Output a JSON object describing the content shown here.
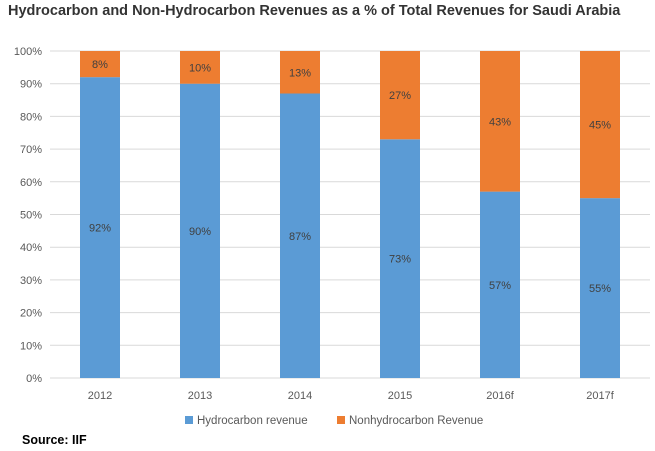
{
  "title": "Hydrocarbon and Non-Hydrocarbon Revenues as a % of Total Revenues for Saudi Arabia",
  "source": "Source: IIF",
  "chart_data": {
    "type": "bar",
    "stacked": true,
    "title": "Hydrocarbon and Non-Hydrocarbon Revenues as a % of Total Revenues for Saudi Arabia",
    "categories": [
      "2012",
      "2013",
      "2014",
      "2015",
      "2016f",
      "2017f"
    ],
    "series": [
      {
        "name": "Hydrocarbon revenue",
        "color": "#5B9BD5",
        "values": [
          92,
          90,
          87,
          73,
          57,
          55
        ],
        "labels": [
          "92%",
          "90%",
          "87%",
          "73%",
          "57%",
          "55%"
        ]
      },
      {
        "name": "Nonhydrocarbon Revenue",
        "color": "#ED7D31",
        "values": [
          8,
          10,
          13,
          27,
          43,
          45
        ],
        "labels": [
          "8%",
          "10%",
          "13%",
          "27%",
          "43%",
          "45%"
        ]
      }
    ],
    "y_ticks": [
      "0%",
      "10%",
      "20%",
      "30%",
      "40%",
      "50%",
      "60%",
      "70%",
      "80%",
      "90%",
      "100%"
    ],
    "ylim": [
      0,
      100
    ],
    "xlabel": "",
    "ylabel": "",
    "legend": "bottom"
  }
}
